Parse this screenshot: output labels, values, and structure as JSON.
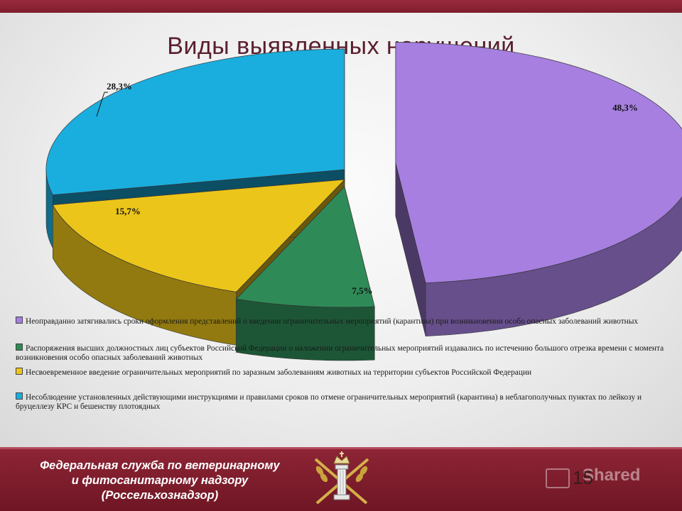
{
  "slide": {
    "title": "Виды выявленных нарушений",
    "page_number": "15",
    "footer_org": [
      "Федеральная служба по ветеринарному",
      "и фитосанитарному надзору",
      "(Россельхознадзор)"
    ],
    "watermark": "Shared"
  },
  "chart_data": {
    "type": "pie",
    "title": "Виды выявленных нарушений",
    "slices": [
      {
        "label": "48,3%",
        "value": 48.3,
        "color": "#a67fe0",
        "legend": "Неоправданно затягивались сроки оформления представлений о введении ограничительных мероприятий (карантина) при возникновении особо опасных заболеваний животных"
      },
      {
        "label": "7,5%",
        "value": 7.5,
        "color": "#2e8b57",
        "legend": "Распоряжения высших должностных лиц субъектов Российской Федерации о наложении ограничительных мероприятий издавались по истечению большого отрезка времени с момента возникновения особо опасных заболеваний животных"
      },
      {
        "label": "15,7%",
        "value": 15.7,
        "color": "#ecc51a",
        "legend": "Несвоевременное введение ограничительных мероприятий по заразным заболеваниям животных на территории субъектов Российской Федерации"
      },
      {
        "label": "28,3%",
        "value": 28.3,
        "color": "#1aaede",
        "legend": "Несоблюдение установленных действующими инструкциями и правилами сроков по отмене ограничительных мероприятий (карантина) в неблагополучных пунктах по лейкозу и бруцеллезу КРС и бешенству плотоядных"
      }
    ],
    "legend_position": "bottom"
  }
}
